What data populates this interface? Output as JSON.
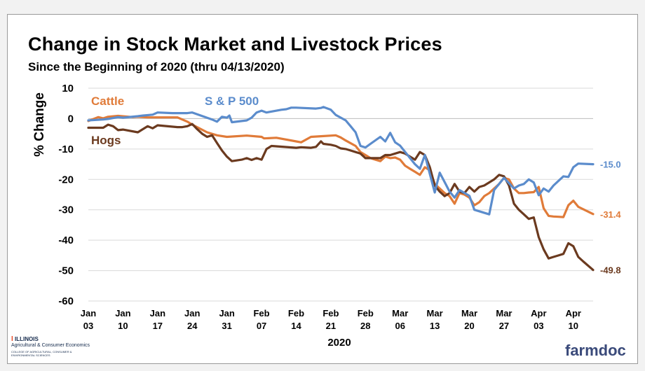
{
  "title": "Change in Stock Market and Livestock Prices",
  "subtitle": "Since the Beginning of 2020 (thru 04/13/2020)",
  "chart_data": {
    "type": "line",
    "ylabel": "% Change",
    "xlabel": "2020",
    "ylim": [
      -60,
      10
    ],
    "yticks": [
      "10",
      "0",
      "-10",
      "-20",
      "-30",
      "-40",
      "-50",
      "-60"
    ],
    "xlim": [
      0,
      102
    ],
    "xtick_positions": [
      0,
      7,
      14,
      21,
      28,
      35,
      42,
      49,
      56,
      63,
      70,
      77,
      84,
      91,
      98
    ],
    "xtick_labels": [
      [
        "Jan",
        "03"
      ],
      [
        "Jan",
        "10"
      ],
      [
        "Jan",
        "17"
      ],
      [
        "Jan",
        "24"
      ],
      [
        "Jan",
        "31"
      ],
      [
        "Feb",
        "07"
      ],
      [
        "Feb",
        "14"
      ],
      [
        "Feb",
        "21"
      ],
      [
        "Feb",
        "28"
      ],
      [
        "Mar",
        "06"
      ],
      [
        "Mar",
        "13"
      ],
      [
        "Mar",
        "20"
      ],
      [
        "Mar",
        "27"
      ],
      [
        "Apr",
        "03"
      ],
      [
        "Apr",
        "10"
      ]
    ],
    "grid": "horizontal",
    "series": [
      {
        "name": "S & P 500",
        "color": "#5b8ccc",
        "end_label": "-15.0",
        "points": [
          [
            0,
            -0.6
          ],
          [
            3,
            -0.3
          ],
          [
            4,
            -0.1
          ],
          [
            6,
            0.5
          ],
          [
            7,
            0.3
          ],
          [
            10,
            0.8
          ],
          [
            11,
            1.0
          ],
          [
            13,
            1.3
          ],
          [
            14,
            2.0
          ],
          [
            17,
            1.8
          ],
          [
            18,
            1.8
          ],
          [
            20,
            1.8
          ],
          [
            21,
            2.0
          ],
          [
            25,
            -0.3
          ],
          [
            26,
            -1.0
          ],
          [
            27,
            0.6
          ],
          [
            28,
            0.3
          ],
          [
            28.5,
            1.0
          ],
          [
            29,
            -1.2
          ],
          [
            32,
            -0.6
          ],
          [
            33,
            0.3
          ],
          [
            34,
            2.0
          ],
          [
            35,
            2.6
          ],
          [
            36,
            2.0
          ],
          [
            39,
            2.9
          ],
          [
            40,
            3.1
          ],
          [
            41,
            3.6
          ],
          [
            42,
            3.6
          ],
          [
            46,
            3.3
          ],
          [
            47,
            3.5
          ],
          [
            47.5,
            3.8
          ],
          [
            49,
            2.9
          ],
          [
            50,
            1.2
          ],
          [
            52,
            -0.6
          ],
          [
            53,
            -2.5
          ],
          [
            54,
            -4.5
          ],
          [
            55,
            -9.0
          ],
          [
            56,
            -9.5
          ],
          [
            57,
            -8.3
          ],
          [
            59,
            -6.0
          ],
          [
            60,
            -7.5
          ],
          [
            61,
            -4.7
          ],
          [
            62,
            -7.8
          ],
          [
            63,
            -8.9
          ],
          [
            66,
            -15.0
          ],
          [
            67,
            -16.5
          ],
          [
            68,
            -12.0
          ],
          [
            70,
            -24.3
          ],
          [
            71,
            -17.8
          ],
          [
            73,
            -24.0
          ],
          [
            74,
            -26.0
          ],
          [
            75,
            -23.5
          ],
          [
            77,
            -25.4
          ],
          [
            78,
            -30.0
          ],
          [
            81,
            -31.5
          ],
          [
            82,
            -23.5
          ],
          [
            84,
            -19.5
          ],
          [
            86,
            -23.0
          ],
          [
            87,
            -22.0
          ],
          [
            88,
            -21.5
          ],
          [
            89,
            -20.0
          ],
          [
            90,
            -21.0
          ],
          [
            91,
            -25.2
          ],
          [
            92,
            -23.0
          ],
          [
            93,
            -24.0
          ],
          [
            94,
            -22.0
          ],
          [
            96,
            -19.0
          ],
          [
            97,
            -19.2
          ],
          [
            98,
            -16.0
          ],
          [
            99,
            -14.8
          ],
          [
            102,
            -15.0
          ]
        ]
      },
      {
        "name": "Cattle",
        "color": "#e07b39",
        "end_label": "-31.4",
        "points": [
          [
            0,
            -0.8
          ],
          [
            2,
            0.5
          ],
          [
            3,
            0.1
          ],
          [
            4,
            0.6
          ],
          [
            6,
            0.9
          ],
          [
            9,
            0.5
          ],
          [
            10,
            0.6
          ],
          [
            12,
            0.4
          ],
          [
            14,
            0.4
          ],
          [
            18,
            0.4
          ],
          [
            20,
            -1.0
          ],
          [
            21,
            -2.0
          ],
          [
            24,
            -4.5
          ],
          [
            26,
            -5.5
          ],
          [
            28,
            -6.0
          ],
          [
            32,
            -5.6
          ],
          [
            35,
            -6.0
          ],
          [
            35.5,
            -6.5
          ],
          [
            38,
            -6.3
          ],
          [
            42,
            -7.5
          ],
          [
            43,
            -7.8
          ],
          [
            45,
            -6.0
          ],
          [
            47,
            -5.8
          ],
          [
            50,
            -5.5
          ],
          [
            51,
            -6.2
          ],
          [
            52,
            -7.2
          ],
          [
            54,
            -9.0
          ],
          [
            55,
            -11.0
          ],
          [
            56,
            -12.0
          ],
          [
            57,
            -13.0
          ],
          [
            58,
            -13.5
          ],
          [
            59,
            -14.0
          ],
          [
            60,
            -12.5
          ],
          [
            61,
            -13.0
          ],
          [
            62,
            -12.8
          ],
          [
            63,
            -13.5
          ],
          [
            64,
            -15.5
          ],
          [
            65,
            -16.5
          ],
          [
            66,
            -17.5
          ],
          [
            67,
            -18.5
          ],
          [
            68,
            -16.0
          ],
          [
            69,
            -17.0
          ],
          [
            70,
            -21.5
          ],
          [
            71,
            -23.0
          ],
          [
            72,
            -24.5
          ],
          [
            73,
            -25.5
          ],
          [
            74,
            -28.0
          ],
          [
            75,
            -24.5
          ],
          [
            76,
            -25.0
          ],
          [
            77,
            -26.0
          ],
          [
            78,
            -28.5
          ],
          [
            79,
            -27.5
          ],
          [
            80,
            -25.5
          ],
          [
            81,
            -24.5
          ],
          [
            82,
            -23.0
          ],
          [
            83,
            -21.5
          ],
          [
            84,
            -19.5
          ],
          [
            85,
            -20.0
          ],
          [
            86,
            -23.0
          ],
          [
            87,
            -24.5
          ],
          [
            88,
            -24.5
          ],
          [
            89,
            -24.3
          ],
          [
            90,
            -24.2
          ],
          [
            91,
            -22.5
          ],
          [
            92,
            -29.5
          ],
          [
            93,
            -32.0
          ],
          [
            94,
            -32.2
          ],
          [
            95,
            -32.3
          ],
          [
            96,
            -32.4
          ],
          [
            97,
            -28.5
          ],
          [
            98,
            -27.0
          ],
          [
            99,
            -29.0
          ],
          [
            102,
            -31.4
          ]
        ]
      },
      {
        "name": "Hogs",
        "color": "#6b3a1f",
        "end_label": "-49.8",
        "points": [
          [
            0,
            -3.0
          ],
          [
            3,
            -3.0
          ],
          [
            4,
            -2.0
          ],
          [
            5,
            -2.5
          ],
          [
            6,
            -3.8
          ],
          [
            7,
            -3.6
          ],
          [
            10,
            -4.5
          ],
          [
            11,
            -3.5
          ],
          [
            12,
            -2.5
          ],
          [
            13,
            -3.2
          ],
          [
            14,
            -2.2
          ],
          [
            18,
            -2.8
          ],
          [
            19,
            -2.8
          ],
          [
            20,
            -2.5
          ],
          [
            21,
            -1.8
          ],
          [
            22,
            -3.5
          ],
          [
            23,
            -5.0
          ],
          [
            24,
            -6.0
          ],
          [
            25,
            -5.5
          ],
          [
            26,
            -8.0
          ],
          [
            27,
            -10.5
          ],
          [
            28,
            -12.5
          ],
          [
            29,
            -14.0
          ],
          [
            31,
            -13.5
          ],
          [
            32,
            -13.0
          ],
          [
            33,
            -13.6
          ],
          [
            34,
            -13.0
          ],
          [
            35,
            -13.5
          ],
          [
            36,
            -10.0
          ],
          [
            37,
            -9.0
          ],
          [
            42,
            -9.6
          ],
          [
            43,
            -9.4
          ],
          [
            45,
            -9.6
          ],
          [
            46,
            -9.3
          ],
          [
            47,
            -7.5
          ],
          [
            47.5,
            -8.3
          ],
          [
            49,
            -8.6
          ],
          [
            50,
            -9.0
          ],
          [
            51,
            -9.8
          ],
          [
            52,
            -10.0
          ],
          [
            53,
            -10.5
          ],
          [
            54,
            -11.0
          ],
          [
            55,
            -11.5
          ],
          [
            56,
            -13.0
          ],
          [
            59,
            -13.0
          ],
          [
            60,
            -12.0
          ],
          [
            61,
            -12.0
          ],
          [
            63,
            -11.0
          ],
          [
            64,
            -11.5
          ],
          [
            65,
            -12.5
          ],
          [
            66,
            -13.5
          ],
          [
            67,
            -11.0
          ],
          [
            68,
            -12.0
          ],
          [
            69,
            -16.0
          ],
          [
            70,
            -22.0
          ],
          [
            71,
            -24.0
          ],
          [
            72,
            -25.5
          ],
          [
            73,
            -24.5
          ],
          [
            74,
            -21.5
          ],
          [
            75,
            -24.0
          ],
          [
            76,
            -24.5
          ],
          [
            77,
            -22.5
          ],
          [
            78,
            -24.0
          ],
          [
            79,
            -22.5
          ],
          [
            80,
            -22.0
          ],
          [
            81,
            -21.0
          ],
          [
            82,
            -20.0
          ],
          [
            83,
            -18.5
          ],
          [
            84,
            -19.0
          ],
          [
            85,
            -22.0
          ],
          [
            86,
            -28.0
          ],
          [
            87,
            -30.0
          ],
          [
            88,
            -31.5
          ],
          [
            89,
            -33.0
          ],
          [
            90,
            -32.5
          ],
          [
            91,
            -39.0
          ],
          [
            92,
            -43.0
          ],
          [
            93,
            -46.0
          ],
          [
            94,
            -45.5
          ],
          [
            95,
            -45.0
          ],
          [
            96,
            -44.5
          ],
          [
            97,
            -41.0
          ],
          [
            98,
            -42.0
          ],
          [
            99,
            -45.5
          ],
          [
            100,
            -47.0
          ],
          [
            102,
            -49.8
          ]
        ]
      }
    ]
  },
  "series_labels": {
    "cattle": "Cattle",
    "sp500": "S & P 500",
    "hogs": "Hogs"
  },
  "branding": {
    "illinois": "ILLINOIS",
    "ace": "Agricultural & Consumer Economics",
    "college": "COLLEGE OF AGRICULTURAL, CONSUMER & ENVIRONMENTAL SCIENCES",
    "farmdoc": "farmdoc",
    "illinois_color": "#e84a27",
    "navy_color": "#13294b"
  }
}
